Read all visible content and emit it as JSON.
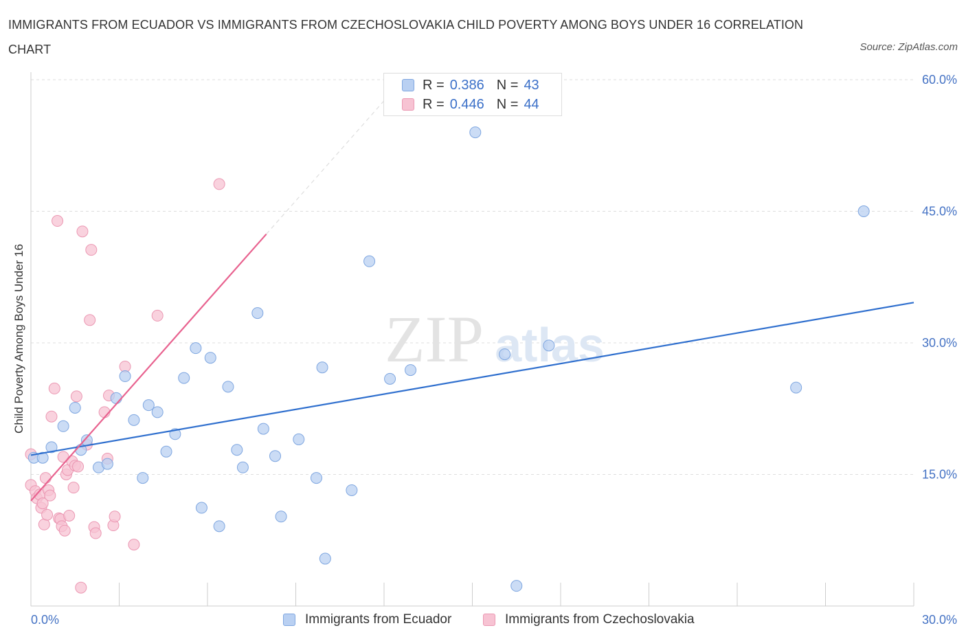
{
  "header": {
    "title": "IMMIGRANTS FROM ECUADOR VS IMMIGRANTS FROM CZECHOSLOVAKIA CHILD POVERTY AMONG BOYS UNDER 16 CORRELATION CHART",
    "source": "Source: ZipAtlas.com"
  },
  "watermark": {
    "zip": "ZIP",
    "atlas": "atlas"
  },
  "legend": {
    "r_label": "R =",
    "n_label": "N =",
    "series1": {
      "r": "0.386",
      "n": "43"
    },
    "series2": {
      "r": "0.446",
      "n": "44"
    }
  },
  "bottom_legend": {
    "series1": "Immigrants from Ecuador",
    "series2": "Immigrants from Czechoslovakia"
  },
  "colors": {
    "series1_fill": "#b9d0f2",
    "series1_stroke": "#7ea6e0",
    "series1_line": "#2f6fce",
    "series2_fill": "#f7c3d3",
    "series2_stroke": "#eb97b2",
    "series2_line": "#e8628f",
    "grid": "#dddddd",
    "axis_text": "#4472c4"
  },
  "chart_data": {
    "type": "scatter",
    "title": "IMMIGRANTS FROM ECUADOR VS IMMIGRANTS FROM CZECHOSLOVAKIA CHILD POVERTY AMONG BOYS UNDER 16 CORRELATION CHART",
    "xlabel": "",
    "ylabel": "Child Poverty Among Boys Under 16",
    "xlim": [
      0,
      30
    ],
    "ylim": [
      0,
      60
    ],
    "x_tick_labels": [
      "0.0%",
      "30.0%"
    ],
    "y_ticks": [
      15,
      30,
      45,
      60
    ],
    "y_tick_labels": [
      "15.0%",
      "30.0%",
      "45.0%",
      "60.0%"
    ],
    "grid": true,
    "legend_position": "top-center",
    "series": [
      {
        "name": "Immigrants from Ecuador",
        "R": 0.386,
        "N": 43,
        "trend": {
          "x": [
            0,
            30
          ],
          "y": [
            17.2,
            34.6
          ],
          "dashed_extension": false
        },
        "points": [
          [
            0.1,
            16.9
          ],
          [
            0.4,
            16.9
          ],
          [
            0.7,
            18.1
          ],
          [
            1.1,
            20.5
          ],
          [
            1.5,
            22.6
          ],
          [
            1.7,
            17.8
          ],
          [
            1.9,
            18.9
          ],
          [
            2.3,
            15.8
          ],
          [
            2.6,
            16.2
          ],
          [
            2.9,
            23.7
          ],
          [
            3.2,
            26.2
          ],
          [
            3.5,
            21.2
          ],
          [
            3.8,
            14.6
          ],
          [
            4.0,
            22.9
          ],
          [
            4.3,
            22.1
          ],
          [
            4.6,
            17.6
          ],
          [
            4.9,
            19.6
          ],
          [
            5.2,
            26.0
          ],
          [
            5.6,
            29.4
          ],
          [
            5.8,
            11.2
          ],
          [
            6.1,
            28.3
          ],
          [
            6.4,
            9.1
          ],
          [
            6.7,
            25.0
          ],
          [
            7.0,
            17.8
          ],
          [
            7.2,
            15.8
          ],
          [
            7.7,
            33.4
          ],
          [
            7.9,
            20.2
          ],
          [
            8.3,
            17.1
          ],
          [
            8.5,
            10.2
          ],
          [
            9.1,
            19.0
          ],
          [
            9.7,
            14.6
          ],
          [
            9.9,
            27.2
          ],
          [
            10.0,
            5.4
          ],
          [
            10.9,
            13.2
          ],
          [
            11.5,
            39.3
          ],
          [
            12.2,
            25.9
          ],
          [
            12.9,
            26.9
          ],
          [
            15.1,
            54.0
          ],
          [
            16.1,
            28.7
          ],
          [
            16.5,
            2.3
          ],
          [
            17.6,
            29.7
          ],
          [
            26.0,
            24.9
          ],
          [
            28.3,
            45.0
          ]
        ]
      },
      {
        "name": "Immigrants from Czechoslovakia",
        "R": 0.446,
        "N": 44,
        "trend": {
          "x": [
            0,
            8.0
          ],
          "y": [
            12.0,
            42.4
          ],
          "dashed_extension": {
            "x": [
              8.0,
              12.5
            ],
            "y": [
              42.4,
              59.5
            ]
          }
        },
        "points": [
          [
            0.0,
            17.3
          ],
          [
            0.0,
            13.8
          ],
          [
            0.15,
            13.1
          ],
          [
            0.2,
            12.3
          ],
          [
            0.3,
            12.7
          ],
          [
            0.35,
            11.2
          ],
          [
            0.4,
            11.7
          ],
          [
            0.45,
            9.3
          ],
          [
            0.5,
            14.6
          ],
          [
            0.55,
            10.4
          ],
          [
            0.6,
            13.2
          ],
          [
            0.65,
            12.6
          ],
          [
            0.7,
            21.6
          ],
          [
            0.8,
            24.8
          ],
          [
            0.9,
            43.9
          ],
          [
            0.95,
            10.0
          ],
          [
            1.0,
            9.9
          ],
          [
            1.05,
            9.1
          ],
          [
            1.1,
            17.0
          ],
          [
            1.15,
            8.6
          ],
          [
            1.2,
            15.0
          ],
          [
            1.25,
            15.5
          ],
          [
            1.3,
            10.3
          ],
          [
            1.4,
            16.5
          ],
          [
            1.45,
            13.5
          ],
          [
            1.5,
            16.0
          ],
          [
            1.55,
            23.9
          ],
          [
            1.6,
            15.9
          ],
          [
            1.7,
            2.1
          ],
          [
            1.75,
            42.7
          ],
          [
            1.9,
            18.4
          ],
          [
            2.0,
            32.6
          ],
          [
            2.05,
            40.6
          ],
          [
            2.15,
            9.0
          ],
          [
            2.2,
            8.3
          ],
          [
            2.5,
            22.1
          ],
          [
            2.6,
            16.8
          ],
          [
            2.65,
            24.0
          ],
          [
            2.8,
            9.2
          ],
          [
            2.85,
            10.2
          ],
          [
            3.2,
            27.3
          ],
          [
            3.5,
            7.0
          ],
          [
            4.3,
            33.1
          ],
          [
            6.4,
            48.1
          ]
        ]
      }
    ]
  }
}
